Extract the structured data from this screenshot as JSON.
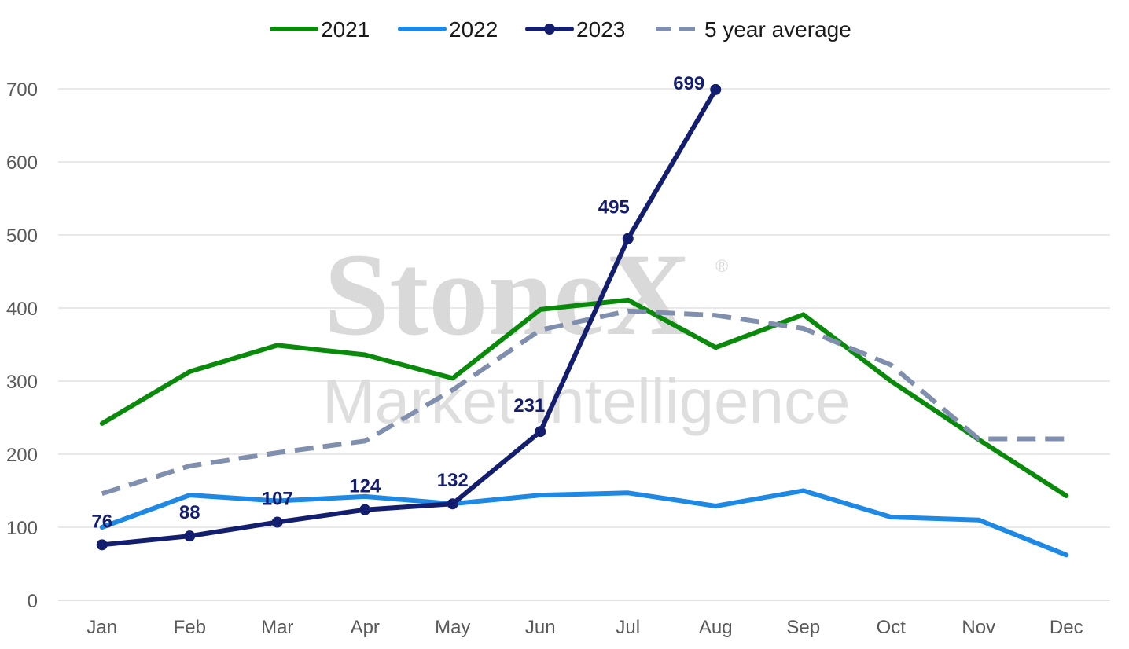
{
  "watermark": {
    "brand": "StoneX",
    "registered": "®",
    "tagline": "Market Intelligence"
  },
  "chart_data": {
    "type": "line",
    "title": "",
    "xlabel": "",
    "ylabel": "",
    "ylim": [
      0,
      700
    ],
    "yticks": [
      0,
      100,
      200,
      300,
      400,
      500,
      600,
      700
    ],
    "grid": true,
    "legend_position": "top-center",
    "categories": [
      "Jan",
      "Feb",
      "Mar",
      "Apr",
      "May",
      "Jun",
      "Jul",
      "Aug",
      "Sep",
      "Oct",
      "Nov",
      "Dec"
    ],
    "series": [
      {
        "name": "2021",
        "color": "#0a8a0a",
        "style": "solid",
        "markers": false,
        "values": [
          242,
          313,
          349,
          336,
          304,
          398,
          411,
          346,
          391,
          300,
          220,
          143
        ]
      },
      {
        "name": "2022",
        "color": "#1e88e5",
        "style": "solid",
        "markers": false,
        "values": [
          100,
          144,
          136,
          142,
          132,
          144,
          147,
          129,
          150,
          114,
          110,
          62
        ]
      },
      {
        "name": "2023",
        "color": "#141e6e",
        "style": "solid",
        "markers": true,
        "data_labels": true,
        "values": [
          76,
          88,
          107,
          124,
          132,
          231,
          495,
          699,
          null,
          null,
          null,
          null
        ]
      },
      {
        "name": "5 year average",
        "color": "#7f8fad",
        "style": "dashed",
        "markers": false,
        "values": [
          146,
          184,
          202,
          218,
          288,
          370,
          396,
          390,
          372,
          322,
          221,
          221
        ]
      }
    ]
  }
}
